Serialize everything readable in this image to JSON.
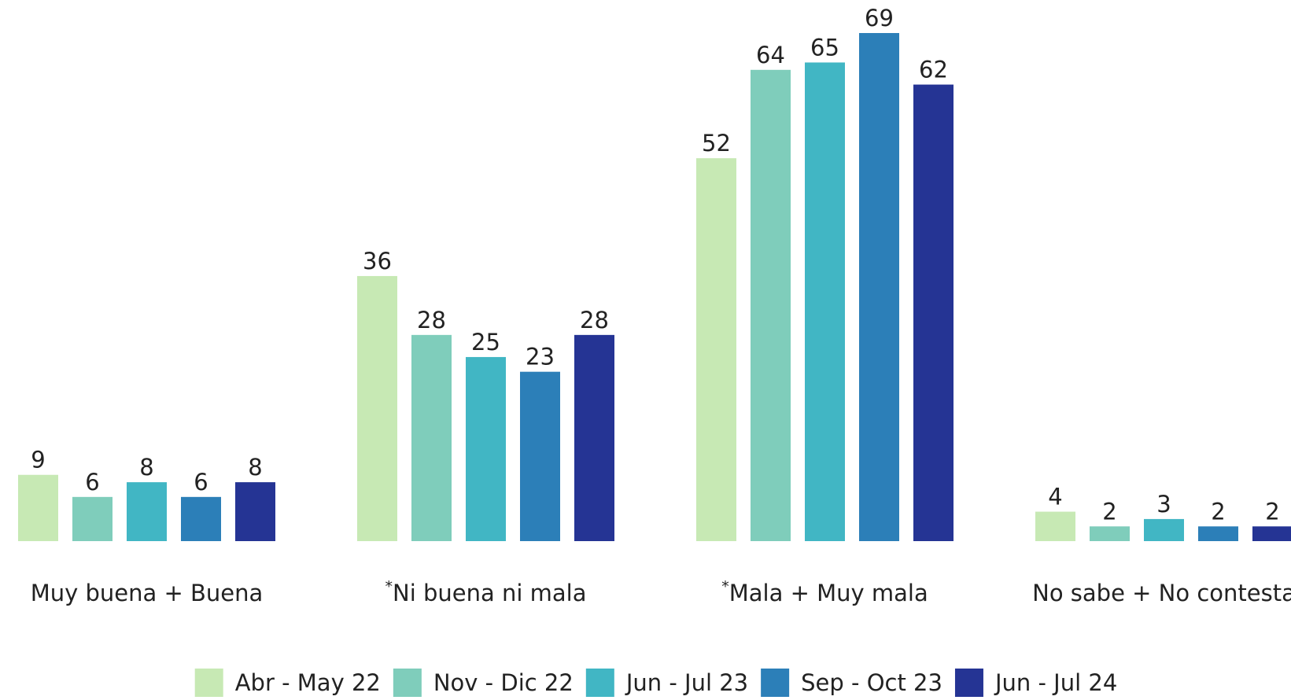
{
  "chart_data": {
    "type": "bar",
    "categories": [
      "Muy buena + Buena",
      "*Ni buena ni mala",
      "*Mala + Muy mala",
      "No sabe + No contesta"
    ],
    "series": [
      {
        "name": "Abr - May 22",
        "color": "#c7e9b4",
        "values": [
          9,
          36,
          52,
          4
        ]
      },
      {
        "name": "Nov - Dic 22",
        "color": "#7fcdbb",
        "values": [
          6,
          28,
          64,
          2
        ]
      },
      {
        "name": "Jun - Jul 23",
        "color": "#41b6c4",
        "values": [
          8,
          25,
          65,
          3
        ]
      },
      {
        "name": "Sep - Oct 23",
        "color": "#2c7fb8",
        "values": [
          6,
          23,
          69,
          2
        ]
      },
      {
        "name": "Jun - Jul 24",
        "color": "#253494",
        "values": [
          8,
          28,
          62,
          2
        ]
      }
    ],
    "legend": "bottom"
  }
}
